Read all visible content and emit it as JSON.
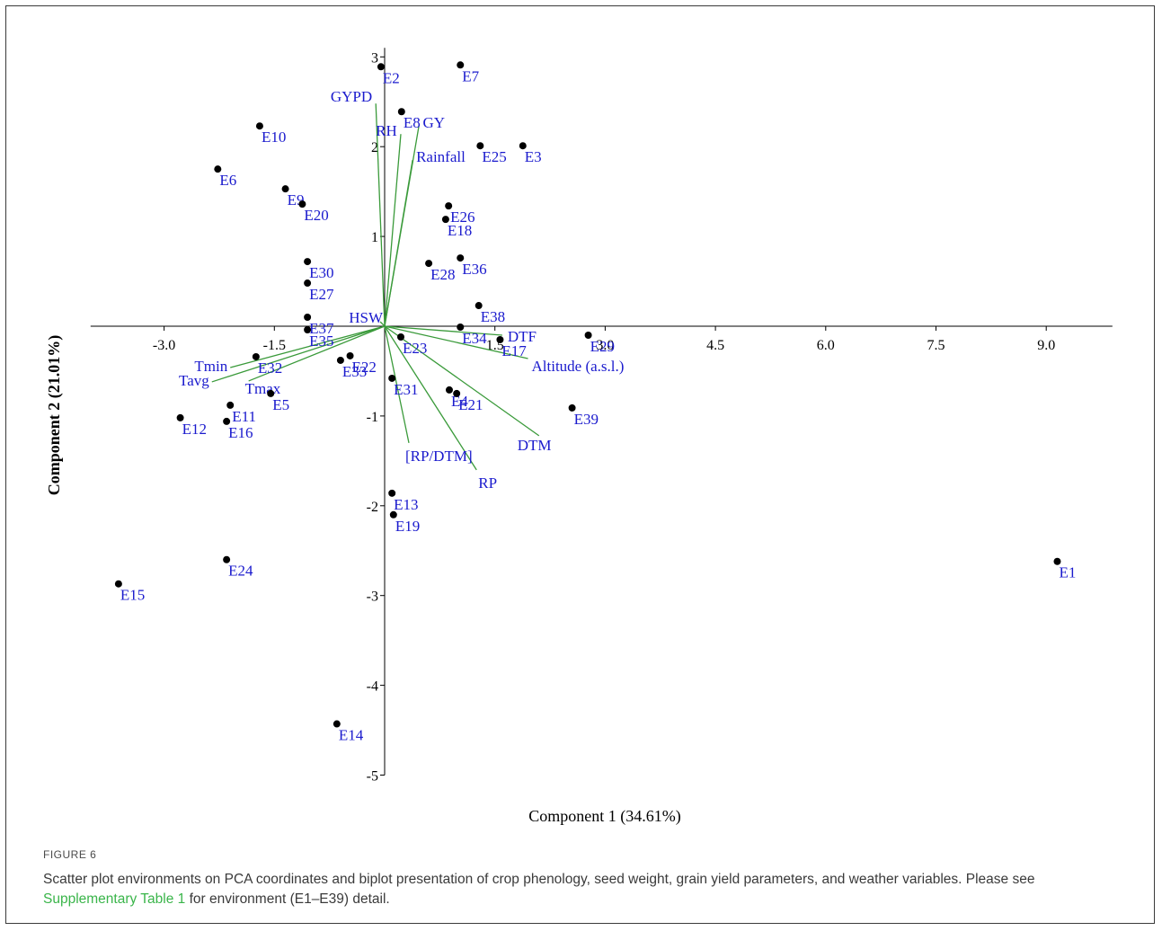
{
  "figure": {
    "label": "FIGURE 6",
    "caption_before": "Scatter plot environments on PCA coordinates and biplot presentation of crop phenology, seed weight, grain yield parameters, and weather variables. Please see ",
    "caption_link": "Supplementary Table 1",
    "caption_after": " for environment (E1–E39) detail."
  },
  "colors": {
    "point": "#000000",
    "point_label": "#1a1acd",
    "vector": "#3a9a3a",
    "axis": "#000000"
  },
  "chart_data": {
    "type": "scatter",
    "xlabel": "Component 1 (34.61%)",
    "ylabel": "Component 2 (21.01%)",
    "xlim": [
      -4.0,
      9.9
    ],
    "ylim": [
      -5.0,
      3.1
    ],
    "x_ticks": [
      {
        "value": -3.0,
        "label": "-3.0"
      },
      {
        "value": -1.5,
        "label": "-1.5"
      },
      {
        "value": 1.5,
        "label": "1.5"
      },
      {
        "value": 3.0,
        "label": "3.0"
      },
      {
        "value": 4.5,
        "label": "4.5"
      },
      {
        "value": 6.0,
        "label": "6.0"
      },
      {
        "value": 7.5,
        "label": "7.5"
      },
      {
        "value": 9.0,
        "label": "9.0"
      }
    ],
    "y_ticks": [
      {
        "value": 3,
        "label": "3"
      },
      {
        "value": 2,
        "label": "2"
      },
      {
        "value": 1,
        "label": "1"
      },
      {
        "value": -1,
        "label": "-1"
      },
      {
        "value": -2,
        "label": "-2"
      },
      {
        "value": -3,
        "label": "-3"
      },
      {
        "value": -4,
        "label": "-4"
      },
      {
        "value": -5,
        "label": "-5"
      }
    ],
    "points": [
      {
        "label": "E1",
        "x": 9.15,
        "y": -2.62
      },
      {
        "label": "E2",
        "x": -0.05,
        "y": 2.89
      },
      {
        "label": "E3",
        "x": 1.88,
        "y": 2.01
      },
      {
        "label": "E4",
        "x": 0.88,
        "y": -0.71
      },
      {
        "label": "E5",
        "x": -1.55,
        "y": -0.75
      },
      {
        "label": "E6",
        "x": -2.27,
        "y": 1.75
      },
      {
        "label": "E7",
        "x": 1.03,
        "y": 2.91
      },
      {
        "label": "E8",
        "x": 0.23,
        "y": 2.39
      },
      {
        "label": "E9",
        "x": -1.35,
        "y": 1.53
      },
      {
        "label": "E10",
        "x": -1.7,
        "y": 2.23
      },
      {
        "label": "E11",
        "x": -2.1,
        "y": -0.88
      },
      {
        "label": "E12",
        "x": -2.78,
        "y": -1.02
      },
      {
        "label": "E13",
        "x": 0.1,
        "y": -1.86
      },
      {
        "label": "E14",
        "x": -0.65,
        "y": -4.43
      },
      {
        "label": "E15",
        "x": -3.62,
        "y": -2.87
      },
      {
        "label": "E16",
        "x": -2.15,
        "y": -1.06
      },
      {
        "label": "E17",
        "x": 1.57,
        "y": -0.15
      },
      {
        "label": "E18",
        "x": 0.83,
        "y": 1.19
      },
      {
        "label": "E19",
        "x": 0.12,
        "y": -2.1
      },
      {
        "label": "E20",
        "x": -1.12,
        "y": 1.36
      },
      {
        "label": "E21",
        "x": 0.98,
        "y": -0.75
      },
      {
        "label": "E22",
        "x": -0.47,
        "y": -0.33
      },
      {
        "label": "E23",
        "x": 0.22,
        "y": -0.12
      },
      {
        "label": "E24",
        "x": -2.15,
        "y": -2.6
      },
      {
        "label": "E25",
        "x": 1.3,
        "y": 2.01
      },
      {
        "label": "E26",
        "x": 0.87,
        "y": 1.34
      },
      {
        "label": "E27",
        "x": -1.05,
        "y": 0.48
      },
      {
        "label": "E28",
        "x": 0.6,
        "y": 0.7
      },
      {
        "label": "E29",
        "x": 2.77,
        "y": -0.1
      },
      {
        "label": "E30",
        "x": -1.05,
        "y": 0.72
      },
      {
        "label": "E31",
        "x": 0.1,
        "y": -0.58
      },
      {
        "label": "E32",
        "x": -1.75,
        "y": -0.34
      },
      {
        "label": "E33",
        "x": -0.6,
        "y": -0.38
      },
      {
        "label": "E34",
        "x": 1.03,
        "y": -0.01
      },
      {
        "label": "E35",
        "x": -1.05,
        "y": -0.04
      },
      {
        "label": "E36",
        "x": 1.03,
        "y": 0.76
      },
      {
        "label": "E37",
        "x": -1.05,
        "y": 0.1
      },
      {
        "label": "E38",
        "x": 1.28,
        "y": 0.23
      },
      {
        "label": "E39",
        "x": 2.55,
        "y": -0.91
      }
    ],
    "vectors": [
      {
        "label": "GYPD",
        "x": -0.12,
        "y": 2.48
      },
      {
        "label": "RH",
        "x": 0.22,
        "y": 2.14
      },
      {
        "label": "GY",
        "x": 0.47,
        "y": 2.25
      },
      {
        "label": "Rainfall",
        "x": 0.38,
        "y": 1.85
      },
      {
        "label": "HSW",
        "x": -0.06,
        "y": 0.05
      },
      {
        "label": "DTF",
        "x": 1.6,
        "y": -0.1
      },
      {
        "label": "Altitude (a.s.l.)",
        "x": 1.95,
        "y": -0.36
      },
      {
        "label": "DTM",
        "x": 2.1,
        "y": -1.22
      },
      {
        "label": "RP",
        "x": 1.25,
        "y": -1.6
      },
      {
        "label": "[RP/DTM]",
        "x": 0.33,
        "y": -1.3
      },
      {
        "label": "Tmin",
        "x": -2.1,
        "y": -0.46
      },
      {
        "label": "Tavg",
        "x": -2.35,
        "y": -0.62
      },
      {
        "label": "Tmax",
        "x": -1.85,
        "y": -0.61
      }
    ]
  }
}
